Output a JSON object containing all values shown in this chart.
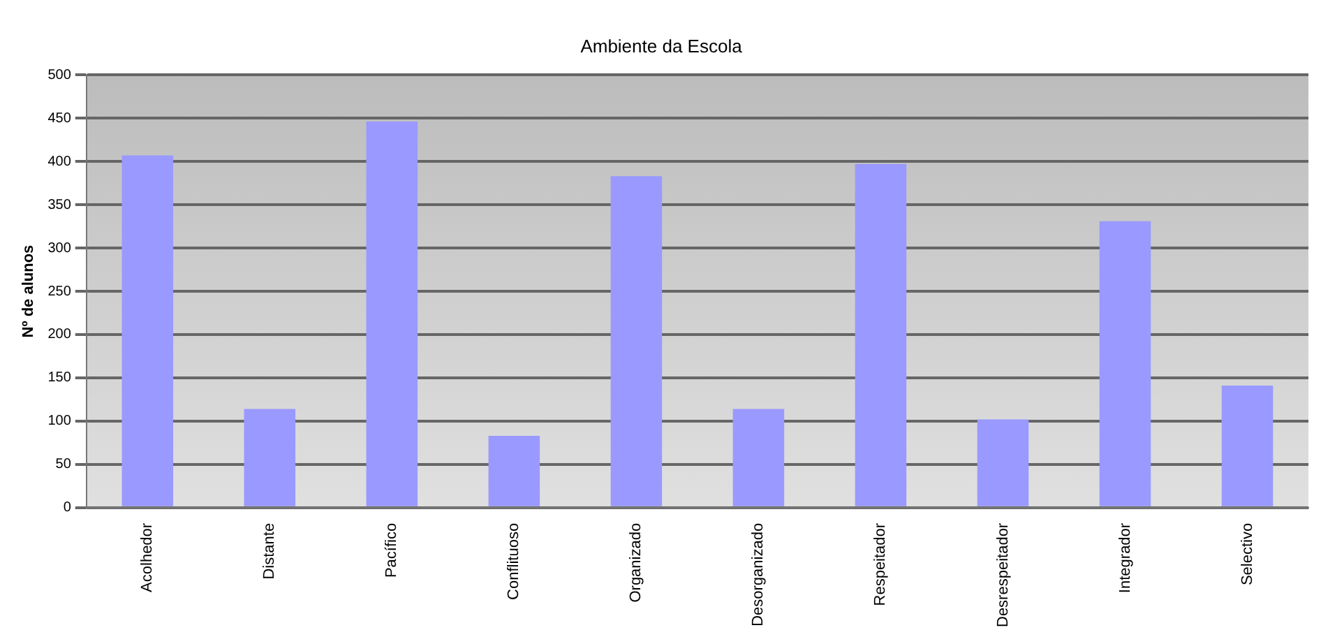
{
  "chart_data": {
    "type": "bar",
    "title": "Ambiente da Escola",
    "ylabel": "Nº de alunos",
    "categories": [
      "Acolhedor",
      "Distante",
      "Pacífico",
      "Conflituoso",
      "Organizado",
      "Desorganizado",
      "Respeitador",
      "Desrespeitador",
      "Integrador",
      "Selectivo"
    ],
    "values": [
      407,
      114,
      446,
      83,
      383,
      114,
      397,
      102,
      331,
      141
    ],
    "color": "#9999ff",
    "ylim": [
      0,
      500
    ],
    "yticks": [
      0,
      50,
      100,
      150,
      200,
      250,
      300,
      350,
      400,
      450,
      500
    ],
    "grid": "y",
    "legend": false
  }
}
